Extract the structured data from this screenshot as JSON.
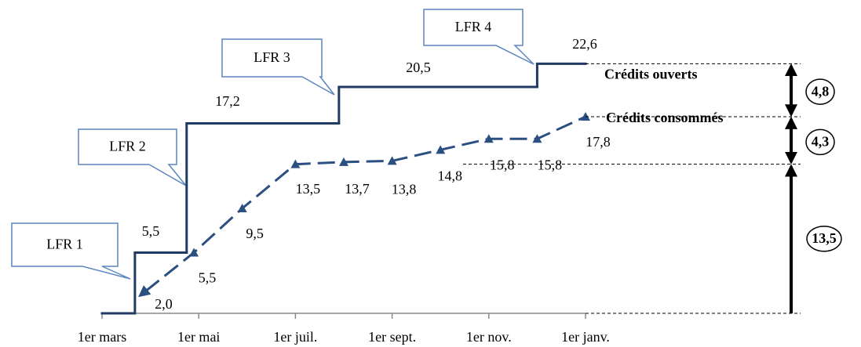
{
  "chart_data": {
    "type": "line",
    "categories": [
      "1er mars",
      "1er mai",
      "1er juil.",
      "1er sept.",
      "1er nov.",
      "1er janv."
    ],
    "xlim": [
      0,
      10
    ],
    "xticks": [
      0,
      2,
      4,
      6,
      8,
      10
    ],
    "ylim": [
      0,
      24
    ],
    "series": [
      {
        "name": "Crédits ouverts",
        "color": "#1f3a63",
        "step": true,
        "x": [
          0,
          0.68,
          1.75,
          4.9,
          9
        ],
        "values": [
          0,
          5.5,
          17.2,
          20.5,
          22.6
        ],
        "value_labels": [
          null,
          "5,5",
          "17,2",
          "20,5",
          "22,6"
        ]
      },
      {
        "name": "Crédits consommés",
        "color": "#2b4f81",
        "dashed": true,
        "x": [
          0.9,
          1.9,
          2.9,
          4,
          5,
          6,
          7,
          8,
          9,
          10
        ],
        "values": [
          2.0,
          5.5,
          9.5,
          13.5,
          13.7,
          13.8,
          14.8,
          15.8,
          15.8,
          17.8
        ],
        "value_labels": [
          "2,0",
          "5,5",
          "9,5",
          "13,5",
          "13,7",
          "13,8",
          "14,8",
          "15,8",
          "15,8",
          "17,8"
        ]
      }
    ],
    "annotations": [
      "LFR 1",
      "LFR 2",
      "LFR 3",
      "LFR 4"
    ],
    "brackets": [
      {
        "value": 13.5,
        "label": "13,5"
      },
      {
        "value": 4.3,
        "label": "4,3"
      },
      {
        "value": 4.8,
        "label": "4,8"
      }
    ]
  }
}
